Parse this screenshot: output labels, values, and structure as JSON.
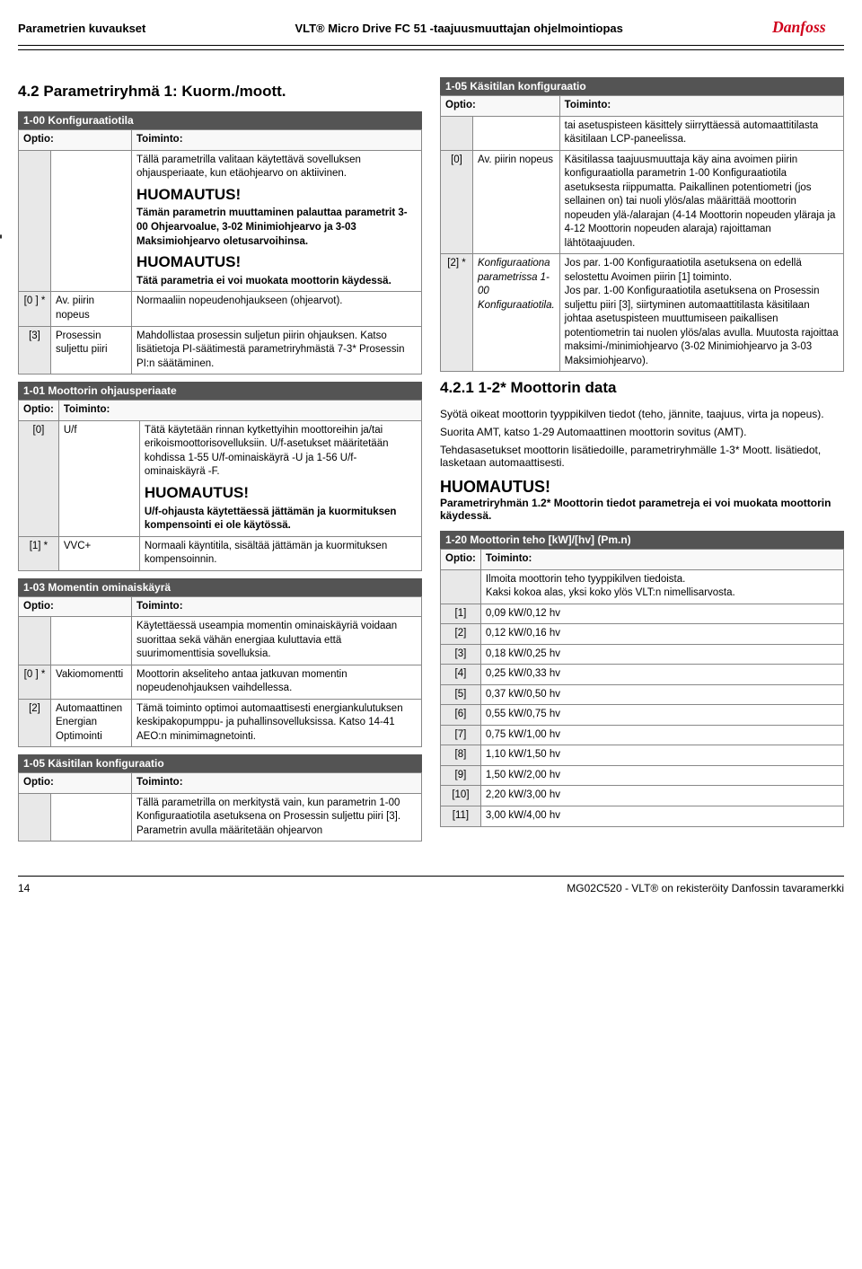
{
  "header": {
    "left": "Parametrien kuvaukset",
    "center": "VLT® Micro Drive FC 51 -taajuusmuuttajan ohjelmointiopas",
    "logo_color": "#d0021b"
  },
  "section_title": "4.2 Parametriryhmä 1: Kuorm./moott.",
  "param_1_00": {
    "header": "1-00  Konfiguraatiotila",
    "optio": "Optio:",
    "toiminto": "Toiminto:",
    "intro": "Tällä parametrilla valitaan käytettävä sovelluksen ohjausperiaate, kun etäohjearvo on aktiivinen.",
    "huom1_title": "HUOMAUTUS!",
    "huom1_body": "Tämän parametrin muuttaminen palauttaa parametrit 3-00 Ohjearvoalue, 3-02 Minimiohjearvo ja 3-03 Maksimiohjearvo oletusarvoihinsa.",
    "huom2_title": "HUOMAUTUS!",
    "huom2_body": "Tätä parametria ei voi muokata moottorin käydessä.",
    "row0_key": "[0 ] *",
    "row0_label": "Av. piirin nopeus",
    "row0_val": "Normaaliin nopeudenohjaukseen (ohjearvot).",
    "row3_key": "[3]",
    "row3_label": "Prosessin suljettu piiri",
    "row3_val": "Mahdollistaa prosessin suljetun piirin ohjauksen. Katso lisätietoja PI-säätimestä parametriryhmästä 7-3* Prosessin PI:n säätäminen."
  },
  "param_1_01": {
    "header": "1-01  Moottorin ohjausperiaate",
    "optio": "Optio:",
    "toiminto": "Toiminto:",
    "row0_key": "[0]",
    "row0_label": "U/f",
    "row0_val": "Tätä käytetään rinnan kytkettyihin moottoreihin ja/tai erikoismoottorisovelluksiin. U/f-asetukset määritetään kohdissa 1-55 U/f-ominaiskäyrä -U ja 1-56 U/f-ominaiskäyrä -F.",
    "huom_title": "HUOMAUTUS!",
    "huom_body": "U/f-ohjausta käytettäessä jättämän ja kuormituksen kompensointi ei ole käytössä.",
    "row1_key": "[1] *",
    "row1_label": "VVC+",
    "row1_val": "Normaali käyntitila, sisältää jättämän ja kuormituksen kompensoinnin."
  },
  "param_1_03": {
    "header": "1-03  Momentin ominaiskäyrä",
    "optio": "Optio:",
    "toiminto": "Toiminto:",
    "intro": "Käytettäessä useampia momentin ominaiskäyriä voidaan suorittaa sekä vähän energiaa kuluttavia että suurimomenttisia sovelluksia.",
    "row0_key": "[0 ] *",
    "row0_label": "Vakiomomentti",
    "row0_val": "Moottorin akseliteho antaa jatkuvan momentin nopeudenohjauksen vaihdellessa.",
    "row2_key": "[2]",
    "row2_label": "Automaattinen Energian Optimointi",
    "row2_val": "Tämä toiminto optimoi automaattisesti energiankulutuksen keskipakopumppu- ja puhallinsovelluksissa. Katso 14-41 AEO:n minimimagnetointi."
  },
  "param_1_05_left": {
    "header": "1-05  Käsitilan konfiguraatio",
    "optio": "Optio:",
    "toiminto": "Toiminto:",
    "body": "Tällä parametrilla on merkitystä vain, kun parametrin 1-00 Konfiguraatiotila asetuksena on Prosessin suljettu piiri [3]. Parametrin avulla määritetään ohjearvon"
  },
  "param_1_05_right": {
    "header": "1-05  Käsitilan konfiguraatio",
    "optio": "Optio:",
    "toiminto": "Toiminto:",
    "r0_text": "tai asetuspisteen käsittely siirryttäessä automaattitilasta käsitilaan LCP-paneelissa.",
    "r1_key": "[0]",
    "r1_label": "Av. piirin nopeus",
    "r1_val": "Käsitilassa taajuusmuuttaja käy aina avoimen piirin konfiguraatiolla parametrin 1-00 Konfiguraatiotila asetuksesta riippumatta. Paikallinen potentiometri (jos sellainen on) tai nuoli ylös/alas määrittää moottorin nopeuden ylä-/alarajan (4-14 Moottorin nopeuden yläraja ja 4-12 Moottorin nopeuden alaraja) rajoittaman lähtötaajuuden.",
    "r2_key": "[2] *",
    "r2_label": "Konfiguraationa parametrissa 1-00 Konfiguraatiotila.",
    "r2_val": "Jos par. 1-00 Konfiguraatiotila asetuksena on edellä selostettu Avoimen piirin [1] toiminto.\nJos par. 1-00 Konfiguraatiotila asetuksena on Prosessin suljettu piiri [3], siirtyminen automaattitilasta käsitilaan johtaa asetuspisteen muuttumiseen paikallisen potentiometrin tai nuolen ylös/alas avulla. Muutosta rajoittaa maksimi-/minimiohjearvo (3-02 Minimiohjearvo ja 3-03 Maksimiohjearvo)."
  },
  "section_421": {
    "title": "4.2.1 1-2* Moottorin data",
    "p1": "Syötä oikeat moottorin tyyppikilven tiedot (teho, jännite, taajuus, virta ja nopeus).",
    "p2": "Suorita AMT, katso 1-29 Automaattinen moottorin sovitus (AMT).",
    "p3": "Tehdasasetukset moottorin lisätiedoille, parametriryhmälle 1-3* Moott. lisätiedot, lasketaan automaattisesti.",
    "huom_title": "HUOMAUTUS!",
    "huom_body": "Parametriryhmän 1.2* Moottorin tiedot parametreja ei voi muokata moottorin käydessä."
  },
  "param_1_20": {
    "header": "1-20  Moottorin teho [kW]/[hv] (Pm.n)",
    "optio": "Optio:",
    "toiminto": "Toiminto:",
    "intro": "Ilmoita moottorin teho tyyppikilven tiedoista.\nKaksi kokoa alas, yksi koko ylös VLT:n nimellisarvosta.",
    "rows": [
      {
        "key": "[1]",
        "val": "0,09 kW/0,12 hv"
      },
      {
        "key": "[2]",
        "val": "0,12 kW/0,16 hv"
      },
      {
        "key": "[3]",
        "val": "0,18 kW/0,25 hv"
      },
      {
        "key": "[4]",
        "val": "0,25 kW/0,33 hv"
      },
      {
        "key": "[5]",
        "val": "0,37 kW/0,50 hv"
      },
      {
        "key": "[6]",
        "val": "0,55 kW/0,75 hv"
      },
      {
        "key": "[7]",
        "val": "0,75 kW/1,00 hv"
      },
      {
        "key": "[8]",
        "val": "1,10 kW/1,50 hv"
      },
      {
        "key": "[9]",
        "val": "1,50 kW/2,00 hv"
      },
      {
        "key": "[10]",
        "val": "2,20 kW/3,00 hv"
      },
      {
        "key": "[11]",
        "val": "3,00 kW/4,00 hv"
      }
    ]
  },
  "footer": {
    "page": "14",
    "right": "MG02C520 - VLT® on rekisteröity Danfossin tavaramerkki"
  }
}
